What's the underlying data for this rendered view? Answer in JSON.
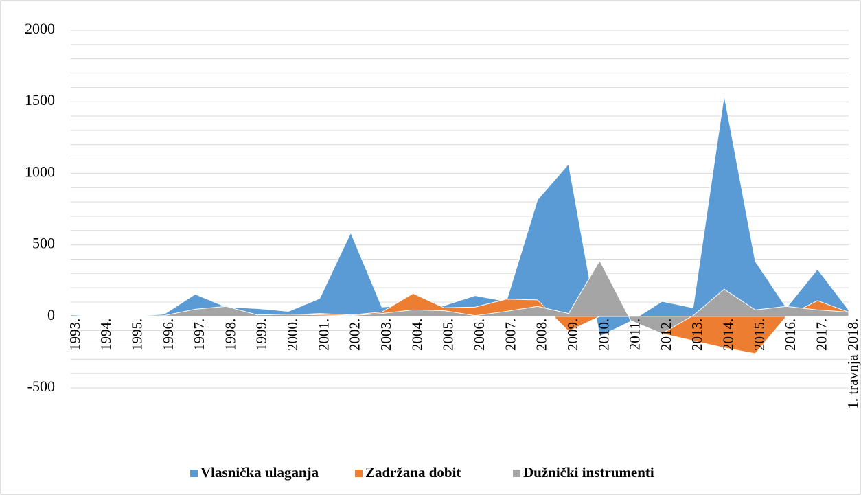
{
  "chart_data": {
    "type": "area",
    "categories": [
      "1993.",
      "1994.",
      "1995.",
      "1996.",
      "1997.",
      "1998.",
      "1999.",
      "2000.",
      "2001.",
      "2002.",
      "2003.",
      "2004.",
      "2005.",
      "2006.",
      "2007.",
      "2008.",
      "2009.",
      "2010.",
      "2011.",
      "2012.",
      "2013.",
      "2014.",
      "2015.",
      "2016.",
      "2017.",
      "1. travnja 2018."
    ],
    "series": [
      {
        "name": "Vlasnička ulaganja",
        "color": "#5b9bd5",
        "values": [
          10,
          0,
          0,
          15,
          155,
          65,
          55,
          35,
          125,
          585,
          65,
          80,
          75,
          145,
          105,
          815,
          1065,
          -140,
          -35,
          105,
          60,
          1545,
          385,
          60,
          330,
          45
        ]
      },
      {
        "name": "Zadržana dobit",
        "color": "#ed7d31",
        "values": [
          0,
          0,
          0,
          0,
          0,
          0,
          0,
          10,
          20,
          10,
          30,
          160,
          60,
          65,
          120,
          115,
          -105,
          0,
          0,
          -120,
          -170,
          -220,
          -260,
          0,
          110,
          30
        ]
      },
      {
        "name": "Dužnički instrumenti",
        "color": "#a5a5a5",
        "values": [
          0,
          0,
          0,
          5,
          50,
          70,
          10,
          15,
          10,
          5,
          20,
          45,
          40,
          5,
          35,
          70,
          20,
          390,
          -30,
          -120,
          5,
          190,
          45,
          70,
          45,
          30
        ]
      }
    ],
    "ylim": [
      -500,
      2000
    ],
    "yticks": [
      -500,
      0,
      500,
      1000,
      1500,
      2000
    ],
    "grid": true,
    "legend": "bottom"
  }
}
